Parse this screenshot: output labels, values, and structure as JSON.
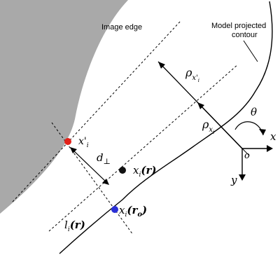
{
  "labels": {
    "image_edge": "Image edge",
    "model_contour_line1": "Model projected",
    "model_contour_line2": "contour",
    "theta": "θ",
    "axis_x": "x",
    "axis_y": "y",
    "origin": "o",
    "rho": "ρ",
    "rho_sub_prime": "x'",
    "rho_sub_prime_i": "i",
    "rho_sub_x": "x",
    "rho_sub_x_i": "i",
    "x_prime": "x'",
    "x_prime_sub": "i",
    "d": "d",
    "d_sub": "⊥",
    "xi": "x",
    "xi_sub": "i",
    "xi_r": "(r)",
    "xi_r0_open": "(r",
    "xi_r0_sub": "o",
    "xi_r0_close": ")",
    "l": "l",
    "l_sub": "i",
    "l_r": "(r)"
  },
  "colors": {
    "image_region": "#a9a9a9",
    "point_red": "#e32119",
    "point_black": "#111111",
    "point_blue": "#2a2fd6",
    "line": "#000000"
  }
}
